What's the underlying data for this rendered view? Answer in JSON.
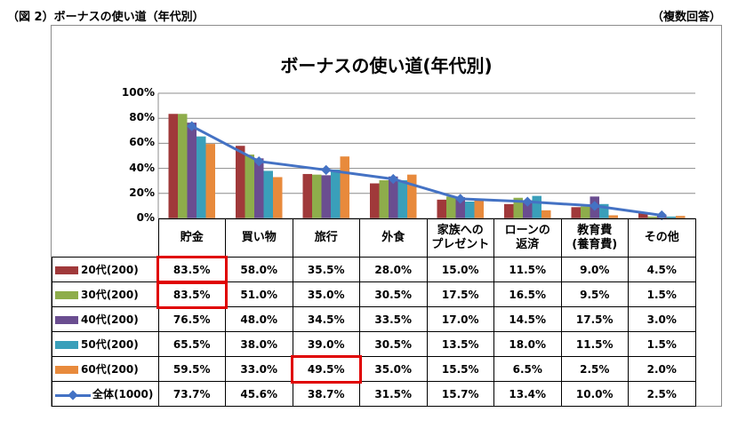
{
  "captions": {
    "left": "（図 2）ボーナスの使い道（年代別）",
    "right": "（複数回答）"
  },
  "chart_data": {
    "type": "bar",
    "title": "ボーナスの使い道(年代別)",
    "categories": [
      "貯金",
      "買い物",
      "旅行",
      "外食",
      "家族への\nプレゼント",
      "ローンの\n返済",
      "教育費\n(養育費)",
      "その他"
    ],
    "ylim": [
      0,
      100
    ],
    "yticks": [
      "0%",
      "20%",
      "40%",
      "60%",
      "80%",
      "100%"
    ],
    "grid": true,
    "series": [
      {
        "name": "20代(200)",
        "type": "bar",
        "color": "#a0393a",
        "values": [
          83.5,
          58.0,
          35.5,
          28.0,
          15.0,
          11.5,
          9.0,
          4.5
        ]
      },
      {
        "name": "30代(200)",
        "type": "bar",
        "color": "#8ead4b",
        "values": [
          83.5,
          51.0,
          35.0,
          30.5,
          17.5,
          16.5,
          9.5,
          1.5
        ]
      },
      {
        "name": "40代(200)",
        "type": "bar",
        "color": "#6a4d90",
        "values": [
          76.5,
          48.0,
          34.5,
          33.5,
          17.0,
          14.5,
          17.5,
          3.0
        ]
      },
      {
        "name": "50代(200)",
        "type": "bar",
        "color": "#3a9fba",
        "values": [
          65.5,
          38.0,
          39.0,
          30.5,
          13.5,
          18.0,
          11.5,
          1.5
        ]
      },
      {
        "name": "60代(200)",
        "type": "bar",
        "color": "#e88a3c",
        "values": [
          59.5,
          33.0,
          49.5,
          35.0,
          15.5,
          6.5,
          2.5,
          2.0
        ]
      },
      {
        "name": "全体(1000)",
        "type": "line",
        "color": "#4472c4",
        "values": [
          73.7,
          45.6,
          38.7,
          31.5,
          15.7,
          13.4,
          10.0,
          2.5
        ]
      }
    ],
    "table": {
      "rows": [
        [
          "83.5%",
          "58.0%",
          "35.5%",
          "28.0%",
          "15.0%",
          "11.5%",
          "9.0%",
          "4.5%"
        ],
        [
          "83.5%",
          "51.0%",
          "35.0%",
          "30.5%",
          "17.5%",
          "16.5%",
          "9.5%",
          "1.5%"
        ],
        [
          "76.5%",
          "48.0%",
          "34.5%",
          "33.5%",
          "17.0%",
          "14.5%",
          "17.5%",
          "3.0%"
        ],
        [
          "65.5%",
          "38.0%",
          "39.0%",
          "30.5%",
          "13.5%",
          "18.0%",
          "11.5%",
          "1.5%"
        ],
        [
          "59.5%",
          "33.0%",
          "49.5%",
          "35.0%",
          "15.5%",
          "6.5%",
          "2.5%",
          "2.0%"
        ],
        [
          "73.7%",
          "45.6%",
          "38.7%",
          "31.5%",
          "15.7%",
          "13.4%",
          "10.0%",
          "2.5%"
        ]
      ]
    },
    "highlighted_cells": [
      {
        "row": "20代(200)",
        "category": "貯金"
      },
      {
        "row": "30代(200)",
        "category": "貯金"
      },
      {
        "row": "60代(200)",
        "category": "旅行"
      }
    ],
    "highlight_color": "#e00000"
  }
}
